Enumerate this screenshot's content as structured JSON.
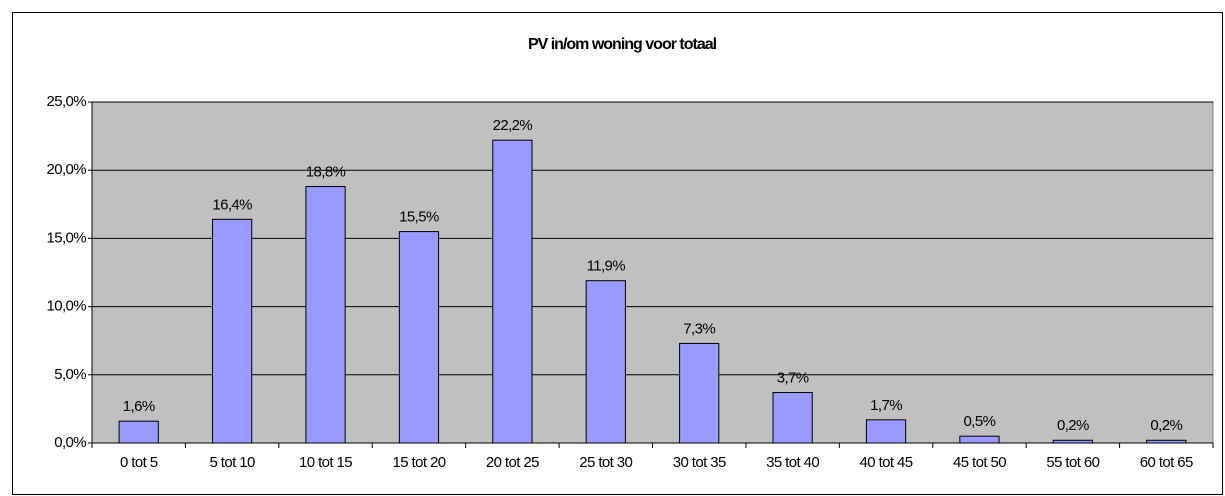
{
  "chart_data": {
    "type": "bar",
    "title": "PV in/om woning voor totaal",
    "categories": [
      "0 tot 5",
      "5 tot 10",
      "10 tot 15",
      "15 tot 20",
      "20 tot 25",
      "25 tot 30",
      "30 tot 35",
      "35 tot 40",
      "40 tot 45",
      "45 tot 50",
      "55 tot 60",
      "60 tot 65"
    ],
    "values": [
      1.6,
      16.4,
      18.8,
      15.5,
      22.2,
      11.9,
      7.3,
      3.7,
      1.7,
      0.5,
      0.2,
      0.2
    ],
    "value_labels": [
      "1,6%",
      "16,4%",
      "18,8%",
      "15,5%",
      "22,2%",
      "11,9%",
      "7,3%",
      "3,7%",
      "1,7%",
      "0,5%",
      "0,2%",
      "0,2%"
    ],
    "color": "#9999ff",
    "ylim": [
      0,
      25
    ],
    "yticks": [
      {
        "value": 0,
        "label": "0,0%"
      },
      {
        "value": 5,
        "label": "5,0%"
      },
      {
        "value": 10,
        "label": "10,0%"
      },
      {
        "value": 15,
        "label": "15,0%"
      },
      {
        "value": 20,
        "label": "20,0%"
      },
      {
        "value": 25,
        "label": "25,0%"
      }
    ],
    "grid": true
  }
}
